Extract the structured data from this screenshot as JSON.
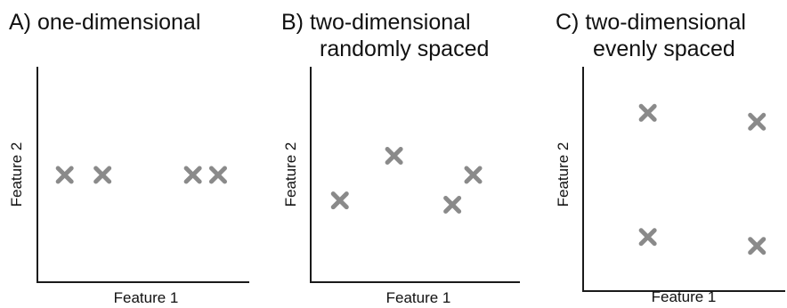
{
  "panels": [
    {
      "id": "a",
      "title_lines": [
        "A) one-dimensional"
      ],
      "xlabel": "Feature 1",
      "ylabel": "Feature 2",
      "points": [
        {
          "x": 0.13,
          "y": 0.5
        },
        {
          "x": 0.31,
          "y": 0.5
        },
        {
          "x": 0.74,
          "y": 0.5
        },
        {
          "x": 0.86,
          "y": 0.5
        }
      ]
    },
    {
      "id": "b",
      "title_lines": [
        "B) two-dimensional",
        "randomly spaced"
      ],
      "xlabel": "Feature 1",
      "ylabel": "Feature 2",
      "points": [
        {
          "x": 0.14,
          "y": 0.38
        },
        {
          "x": 0.4,
          "y": 0.59
        },
        {
          "x": 0.68,
          "y": 0.36
        },
        {
          "x": 0.78,
          "y": 0.5
        }
      ]
    },
    {
      "id": "c",
      "title_lines": [
        "C) two-dimensional",
        "evenly spaced"
      ],
      "xlabel": "Feature 1",
      "ylabel": "Feature 2",
      "points": [
        {
          "x": 0.32,
          "y": 0.8
        },
        {
          "x": 0.86,
          "y": 0.76
        },
        {
          "x": 0.32,
          "y": 0.24
        },
        {
          "x": 0.86,
          "y": 0.2
        }
      ]
    }
  ],
  "colors": {
    "marker": "#8a8a8a",
    "axis": "#1a1a1a"
  }
}
